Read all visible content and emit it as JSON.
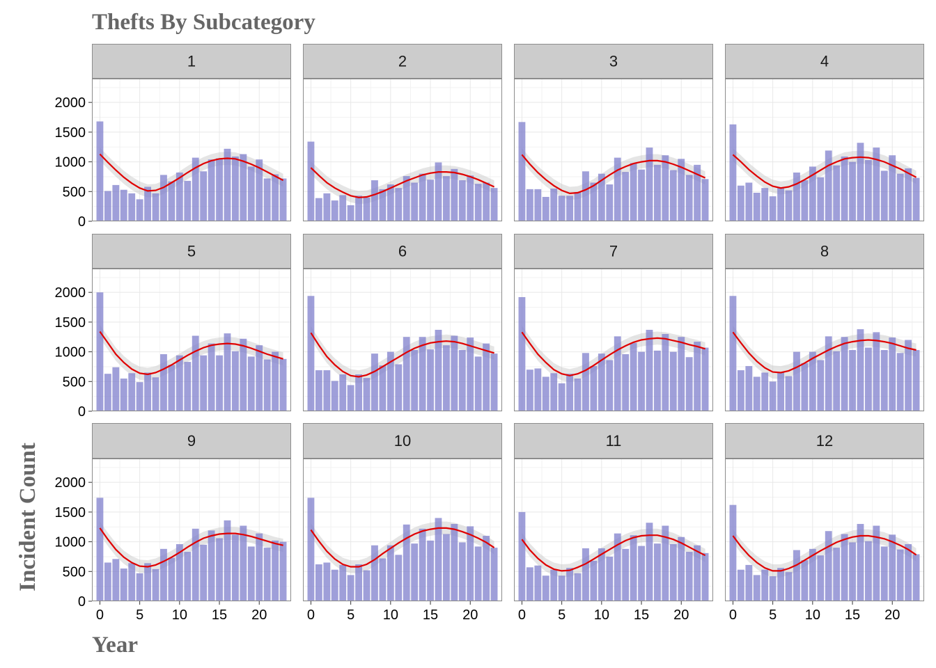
{
  "chart_data": {
    "type": "bar",
    "title": "Thefts By Subcategory",
    "xlabel": "Year",
    "ylabel": "Incident Count",
    "xlim": [
      -1,
      24
    ],
    "ylim": [
      0,
      2400
    ],
    "x_ticks": [
      0,
      5,
      10,
      15,
      20
    ],
    "y_ticks": [
      0,
      500,
      1000,
      1500,
      2000
    ],
    "x": [
      0,
      1,
      2,
      3,
      4,
      5,
      6,
      7,
      8,
      9,
      10,
      11,
      12,
      13,
      14,
      15,
      16,
      17,
      18,
      19,
      20,
      21,
      22,
      23
    ],
    "grid": true,
    "legend": "none",
    "colors": {
      "bar": "#7f7fcc",
      "smooth": "#e00000",
      "band": "#bdbdbd",
      "strip": "#cccccc",
      "panel_border": "#8c8c8c",
      "grid": "#e8e8e8"
    },
    "panels": [
      {
        "label": "1",
        "values": [
          1680,
          510,
          610,
          530,
          470,
          370,
          580,
          470,
          780,
          670,
          820,
          680,
          1070,
          840,
          1040,
          1060,
          1220,
          1090,
          1130,
          920,
          1040,
          720,
          790,
          720
        ],
        "smooth": [
          1130,
          990,
          860,
          740,
          640,
          560,
          510,
          520,
          570,
          650,
          730,
          820,
          900,
          970,
          1020,
          1050,
          1060,
          1050,
          1010,
          960,
          900,
          830,
          760,
          690
        ]
      },
      {
        "label": "2",
        "values": [
          1340,
          390,
          470,
          350,
          440,
          270,
          430,
          400,
          690,
          540,
          620,
          560,
          760,
          650,
          800,
          700,
          990,
          760,
          880,
          690,
          770,
          630,
          650,
          560
        ],
        "smooth": [
          900,
          770,
          650,
          560,
          490,
          430,
          400,
          410,
          450,
          500,
          560,
          620,
          680,
          730,
          780,
          810,
          830,
          830,
          820,
          790,
          750,
          700,
          640,
          580
        ]
      },
      {
        "label": "3",
        "values": [
          1670,
          540,
          540,
          410,
          550,
          430,
          430,
          490,
          840,
          650,
          800,
          620,
          1070,
          830,
          980,
          870,
          1240,
          950,
          1110,
          860,
          1050,
          780,
          950,
          710
        ],
        "smooth": [
          1120,
          960,
          820,
          700,
          600,
          520,
          470,
          480,
          530,
          600,
          690,
          780,
          860,
          920,
          970,
          1000,
          1020,
          1020,
          1000,
          960,
          910,
          850,
          790,
          730
        ]
      },
      {
        "label": "4",
        "values": [
          1630,
          600,
          650,
          480,
          560,
          420,
          560,
          520,
          820,
          690,
          920,
          740,
          1190,
          940,
          1090,
          1000,
          1320,
          1030,
          1240,
          850,
          1110,
          800,
          890,
          730
        ],
        "smooth": [
          1120,
          1000,
          870,
          760,
          660,
          590,
          560,
          580,
          630,
          700,
          780,
          860,
          940,
          1000,
          1050,
          1070,
          1080,
          1070,
          1040,
          1000,
          940,
          880,
          810,
          740
        ]
      },
      {
        "label": "5",
        "values": [
          2000,
          630,
          740,
          550,
          640,
          490,
          650,
          570,
          960,
          780,
          940,
          830,
          1270,
          940,
          1140,
          940,
          1310,
          1010,
          1220,
          920,
          1110,
          870,
          1000,
          880
        ],
        "smooth": [
          1340,
          1150,
          960,
          820,
          710,
          640,
          620,
          650,
          710,
          780,
          860,
          940,
          1010,
          1070,
          1110,
          1130,
          1140,
          1130,
          1100,
          1060,
          1010,
          960,
          920,
          880
        ]
      },
      {
        "label": "6",
        "values": [
          1940,
          690,
          690,
          510,
          620,
          440,
          620,
          560,
          970,
          770,
          1000,
          790,
          1250,
          1030,
          1250,
          1040,
          1370,
          1110,
          1270,
          1030,
          1240,
          920,
          1140,
          970
        ],
        "smooth": [
          1320,
          1110,
          920,
          780,
          670,
          600,
          580,
          610,
          670,
          750,
          830,
          910,
          990,
          1060,
          1110,
          1150,
          1170,
          1180,
          1170,
          1140,
          1100,
          1060,
          1020,
          980
        ]
      },
      {
        "label": "7",
        "values": [
          1920,
          700,
          720,
          580,
          640,
          470,
          630,
          550,
          980,
          760,
          970,
          860,
          1260,
          960,
          1150,
          1000,
          1370,
          1020,
          1300,
          1000,
          1250,
          910,
          1170,
          1070
        ],
        "smooth": [
          1330,
          1140,
          960,
          820,
          700,
          630,
          600,
          630,
          690,
          770,
          860,
          950,
          1030,
          1100,
          1160,
          1200,
          1220,
          1230,
          1220,
          1190,
          1160,
          1120,
          1090,
          1050
        ]
      },
      {
        "label": "8",
        "values": [
          1940,
          690,
          760,
          580,
          650,
          500,
          650,
          590,
          1000,
          810,
          1000,
          860,
          1260,
          1010,
          1250,
          1030,
          1380,
          1070,
          1330,
          1030,
          1240,
          980,
          1200,
          1030
        ],
        "smooth": [
          1330,
          1150,
          980,
          840,
          730,
          660,
          650,
          680,
          740,
          810,
          890,
          960,
          1030,
          1090,
          1140,
          1170,
          1190,
          1200,
          1190,
          1170,
          1140,
          1100,
          1060,
          1030
        ]
      },
      {
        "label": "9",
        "values": [
          1740,
          650,
          710,
          550,
          640,
          470,
          640,
          540,
          880,
          730,
          960,
          830,
          1220,
          950,
          1190,
          1060,
          1360,
          1120,
          1270,
          920,
          1140,
          900,
          1020,
          1000
        ],
        "smooth": [
          1230,
          1040,
          870,
          740,
          650,
          590,
          580,
          610,
          670,
          740,
          820,
          910,
          990,
          1060,
          1100,
          1130,
          1140,
          1140,
          1120,
          1090,
          1050,
          1010,
          970,
          940
        ]
      },
      {
        "label": "10",
        "values": [
          1740,
          620,
          650,
          530,
          610,
          440,
          620,
          520,
          940,
          720,
          940,
          780,
          1290,
          970,
          1220,
          1020,
          1400,
          1130,
          1300,
          990,
          1260,
          920,
          1100,
          900
        ],
        "smooth": [
          1200,
          1010,
          840,
          710,
          620,
          580,
          580,
          620,
          700,
          800,
          890,
          980,
          1060,
          1130,
          1180,
          1210,
          1230,
          1230,
          1210,
          1170,
          1120,
          1060,
          990,
          900
        ]
      },
      {
        "label": "11",
        "values": [
          1500,
          570,
          600,
          430,
          530,
          430,
          560,
          470,
          890,
          680,
          890,
          750,
          1140,
          880,
          1110,
          930,
          1320,
          970,
          1270,
          960,
          1080,
          830,
          940,
          810
        ],
        "smooth": [
          1040,
          860,
          720,
          610,
          540,
          510,
          520,
          570,
          630,
          710,
          790,
          870,
          950,
          1020,
          1070,
          1100,
          1110,
          1110,
          1080,
          1040,
          980,
          910,
          840,
          770
        ]
      },
      {
        "label": "12",
        "values": [
          1620,
          530,
          610,
          440,
          530,
          420,
          560,
          490,
          860,
          690,
          880,
          770,
          1180,
          900,
          1130,
          990,
          1300,
          1010,
          1270,
          920,
          1120,
          870,
          960,
          790
        ],
        "smooth": [
          1100,
          920,
          770,
          650,
          560,
          510,
          510,
          550,
          610,
          690,
          770,
          850,
          920,
          990,
          1040,
          1080,
          1100,
          1100,
          1080,
          1050,
          1000,
          940,
          870,
          780
        ]
      }
    ]
  }
}
